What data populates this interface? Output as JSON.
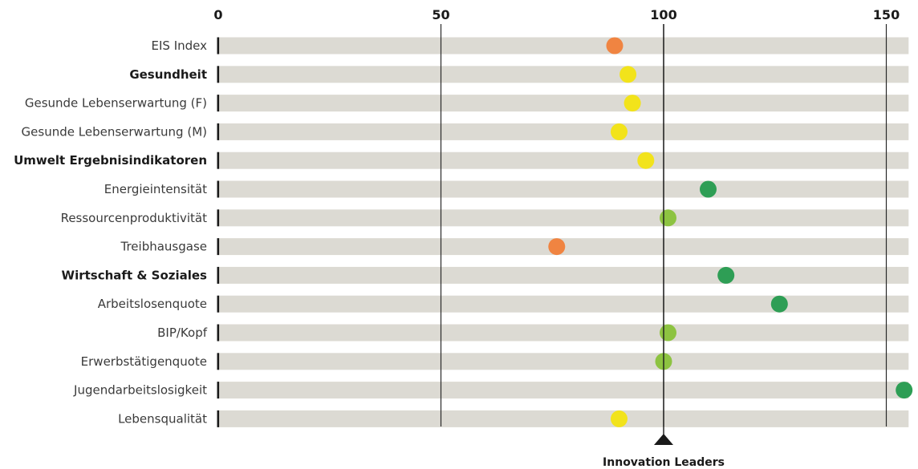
{
  "chart_data": {
    "type": "dot-bar",
    "title": "",
    "xlabel": "",
    "ylabel": "",
    "xlim": [
      0,
      155
    ],
    "x_ticks": [
      0,
      50,
      100,
      150
    ],
    "x_tick_labels": [
      "0",
      "50",
      "100",
      "150"
    ],
    "grid": "vertical lines at 50, 100 and 150",
    "categories": [
      "EIS Index",
      "Gesundheit",
      "Gesunde Lebenserwartung (F)",
      "Gesunde Lebenserwartung (M)",
      "Umwelt Ergebnisindikatoren",
      "Energieintensität",
      "Ressourcenproduktivität",
      "Treibhausgase",
      "Wirtschaft & Soziales",
      "Arbeitslosenquote",
      "BIP/Kopf",
      "Erwerbstätigenquote",
      "Jugendarbeitslosigkeit",
      "Lebensqualität"
    ],
    "bold_categories": [
      "Gesundheit",
      "Umwelt Ergebnisindikatoren",
      "Wirtschaft & Soziales"
    ],
    "values": [
      89,
      92,
      93,
      90,
      96,
      110,
      101,
      76,
      114,
      126,
      101,
      100,
      154,
      90
    ],
    "dot_colors": [
      "#f08441",
      "#f2e31b",
      "#f2e31b",
      "#f2e31b",
      "#f2e31b",
      "#2e9e55",
      "#8dc341",
      "#f08441",
      "#2e9e55",
      "#2e9e55",
      "#8dc341",
      "#8dc341",
      "#2e9e55",
      "#f2e31b"
    ],
    "bar_color": "#dcdad3",
    "reference": {
      "value": 100,
      "label": "Innovation Leaders"
    }
  }
}
